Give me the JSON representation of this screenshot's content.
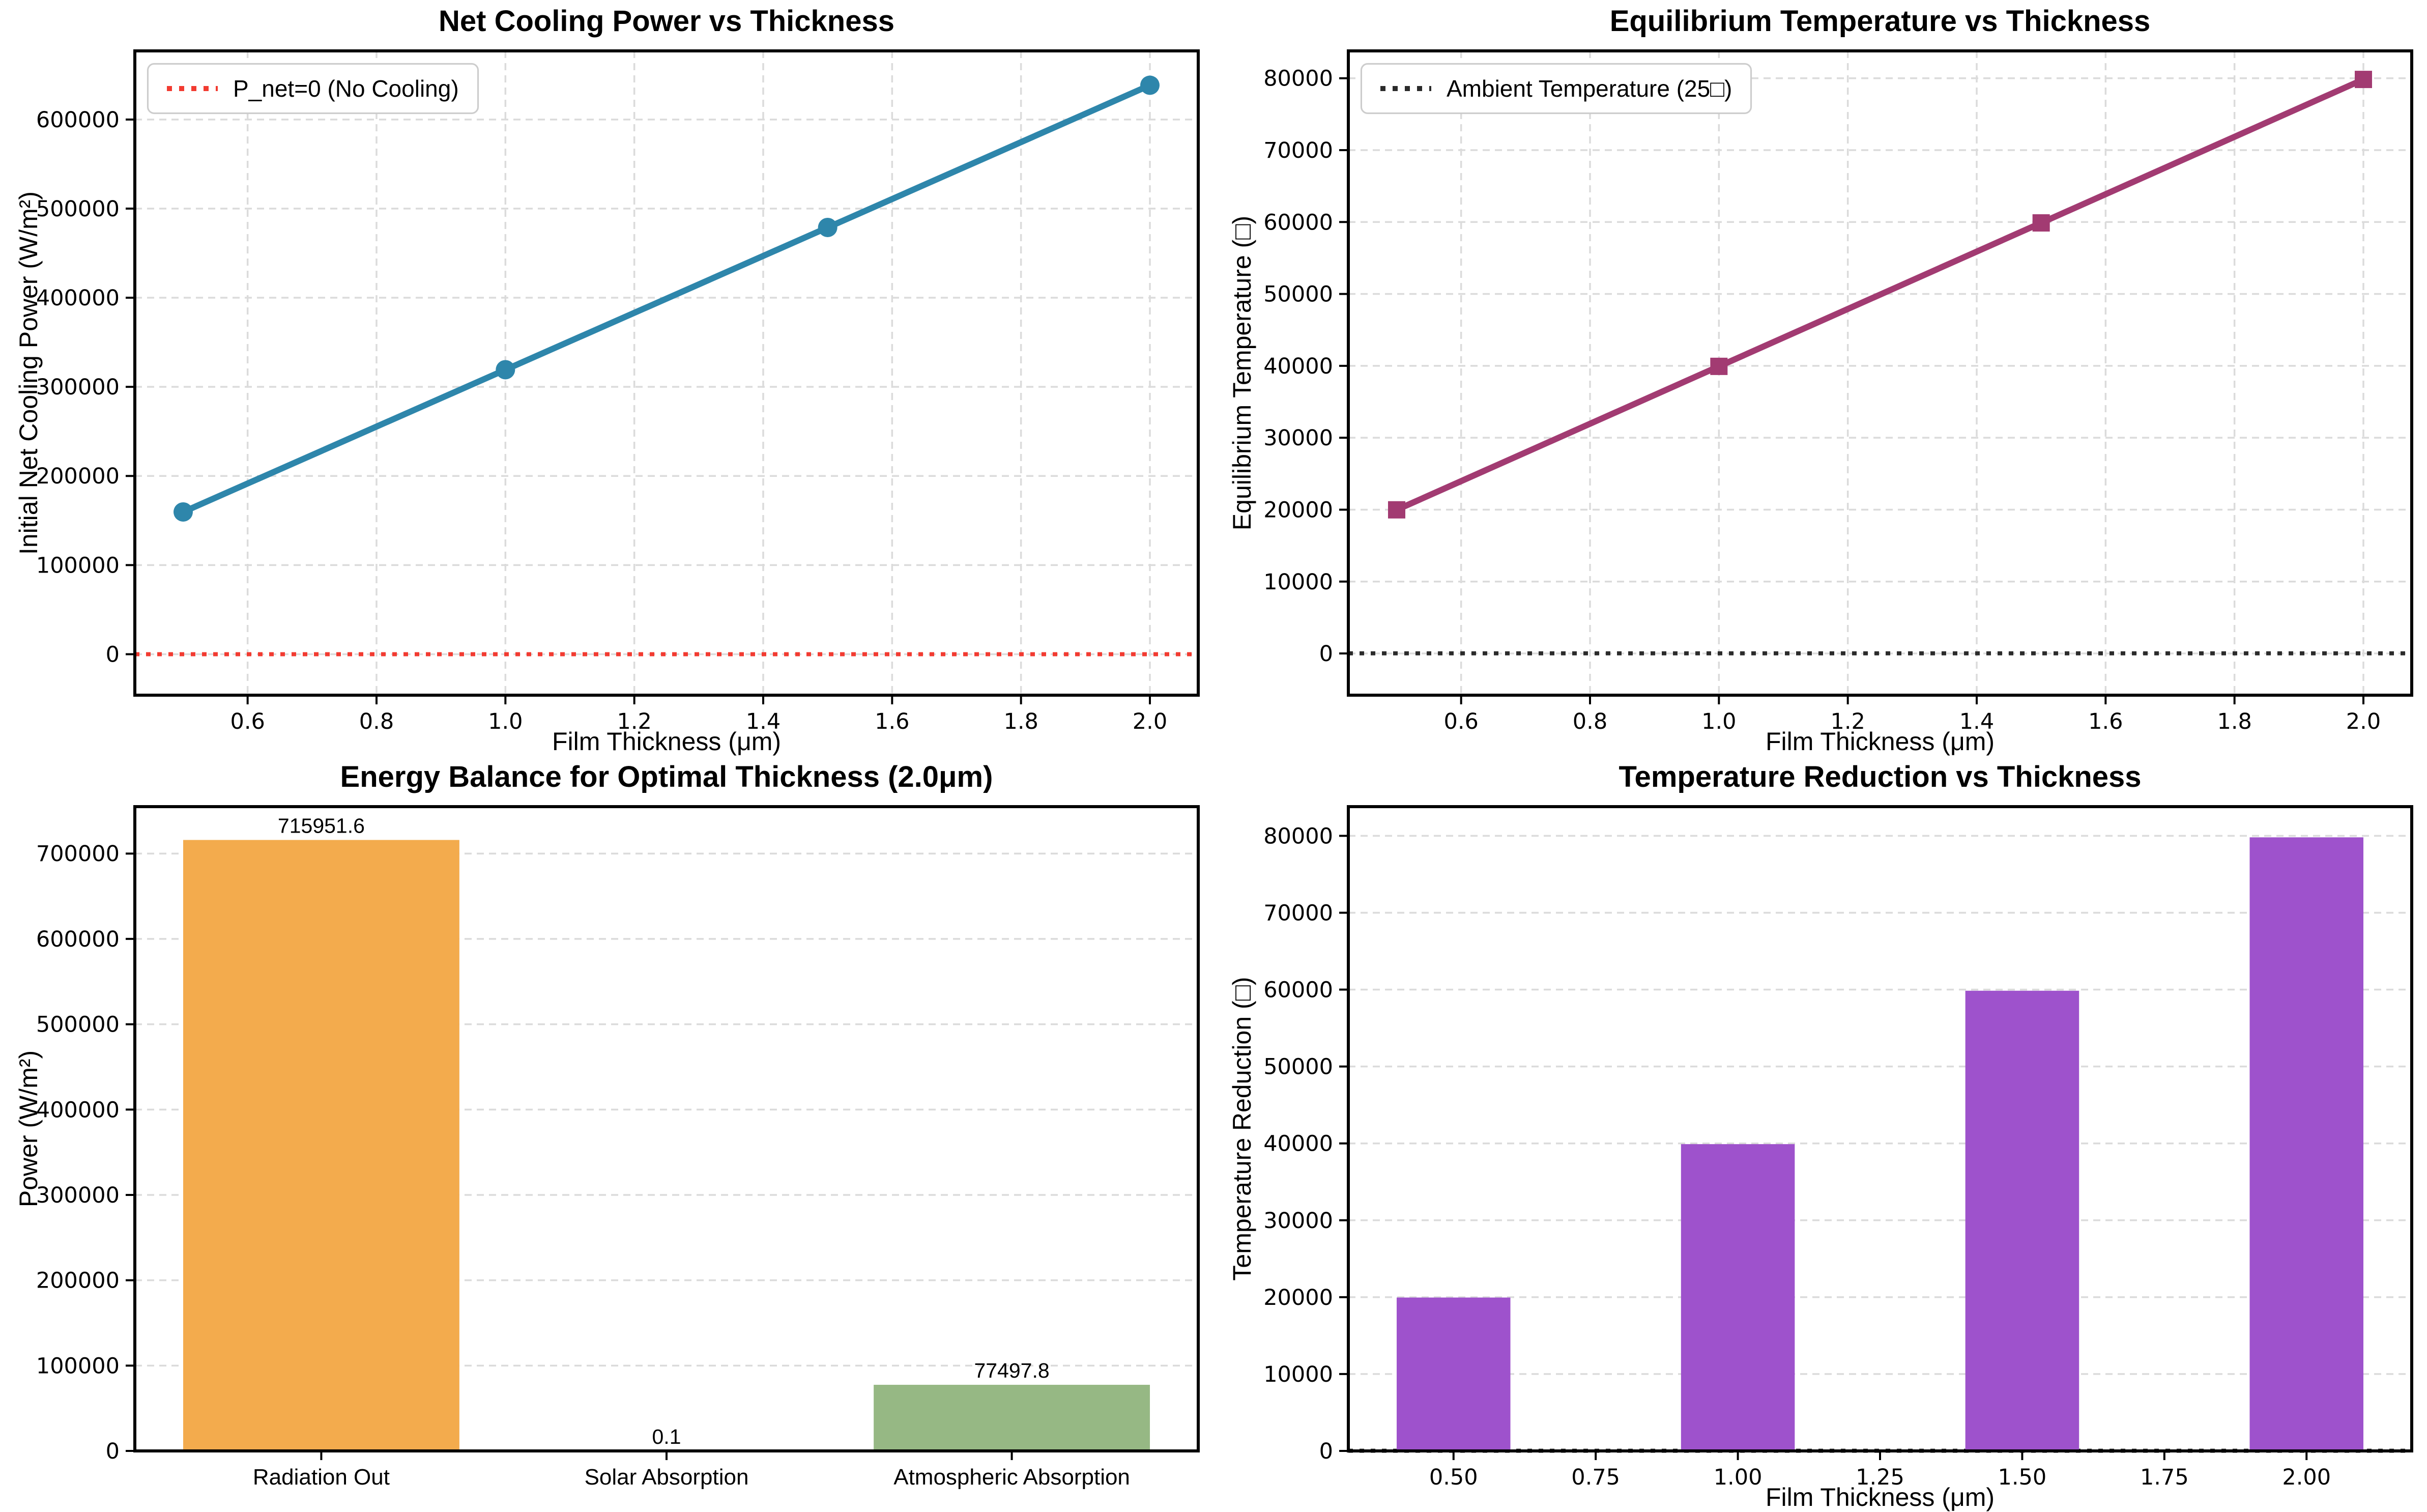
{
  "figure": {
    "background": "#FFFFFF"
  },
  "chart_data": [
    {
      "type": "line",
      "title": "Net Cooling Power vs Thickness",
      "xlabel": "Film Thickness (μm)",
      "ylabel": "Initial Net Cooling Power (W/m²)",
      "x": [
        0.5,
        1.0,
        1.5,
        2.0
      ],
      "y": [
        159613.4,
        319226.9,
        478840.3,
        638453.7
      ],
      "marker": "circle",
      "color": "#2E86AB",
      "line_width": 12,
      "grid": "both",
      "xlim": [
        0.425,
        2.075
      ],
      "ylim": [
        -46000,
        677000
      ],
      "xticks": [
        0.6,
        0.8,
        1.0,
        1.2,
        1.4,
        1.6,
        1.8,
        2.0
      ],
      "xtick_labels": [
        "0.6",
        "0.8",
        "1.0",
        "1.2",
        "1.4",
        "1.6",
        "1.8",
        "2.0"
      ],
      "yticks": [
        0,
        100000,
        200000,
        300000,
        400000,
        500000,
        600000
      ],
      "ytick_labels": [
        "0",
        "100000",
        "200000",
        "300000",
        "400000",
        "500000",
        "600000"
      ],
      "refline": {
        "y": 0,
        "color": "#F23B31",
        "style": "dotted"
      },
      "legend": {
        "label": "P_net=0 (No Cooling)",
        "position": "upper-left"
      }
    },
    {
      "type": "line",
      "title": "Equilibrium Temperature vs Thickness",
      "xlabel": "Film Thickness (μm)",
      "ylabel": "Equilibrium Temperature (□)",
      "x": [
        0.5,
        1.0,
        1.5,
        2.0
      ],
      "y": [
        19976.7,
        39928.4,
        59880.1,
        79831.7
      ],
      "marker": "square",
      "color": "#A23B72",
      "line_width": 12,
      "grid": "both",
      "xlim": [
        0.425,
        2.075
      ],
      "ylim": [
        -5800,
        83800
      ],
      "xticks": [
        0.6,
        0.8,
        1.0,
        1.2,
        1.4,
        1.6,
        1.8,
        2.0
      ],
      "xtick_labels": [
        "0.6",
        "0.8",
        "1.0",
        "1.2",
        "1.4",
        "1.6",
        "1.8",
        "2.0"
      ],
      "yticks": [
        0,
        10000,
        20000,
        30000,
        40000,
        50000,
        60000,
        70000,
        80000
      ],
      "ytick_labels": [
        "0",
        "10000",
        "20000",
        "30000",
        "40000",
        "50000",
        "60000",
        "70000",
        "80000"
      ],
      "refline": {
        "y": 25,
        "color": "#2B2B2B",
        "style": "dotted"
      },
      "legend": {
        "label": "Ambient Temperature (25□)",
        "position": "upper-left"
      }
    },
    {
      "type": "bar",
      "title": "Energy Balance for Optimal Thickness (2.0μm)",
      "xlabel": "",
      "ylabel": "Power (W/m²)",
      "categories": [
        "Radiation Out",
        "Solar Absorption",
        "Atmospheric Absorption"
      ],
      "values": [
        715951.6,
        0.1,
        77497.8
      ],
      "value_labels": [
        "715951.6",
        "0.1",
        "77497.8"
      ],
      "colors": [
        "#F3AB4D",
        "#888888",
        "#96B884"
      ],
      "bar_width": 0.8,
      "grid": "y",
      "xlim": [
        -0.54,
        2.54
      ],
      "ylim": [
        0,
        755000
      ],
      "yticks": [
        0,
        100000,
        200000,
        300000,
        400000,
        500000,
        600000,
        700000
      ],
      "ytick_labels": [
        "0",
        "100000",
        "200000",
        "300000",
        "400000",
        "500000",
        "600000",
        "700000"
      ]
    },
    {
      "type": "bar",
      "title": "Temperature Reduction vs Thickness",
      "xlabel": "Film Thickness (μm)",
      "ylabel": "Temperature Reduction (□)",
      "x": [
        0.5,
        1.0,
        1.5,
        2.0
      ],
      "values": [
        19951.7,
        39903.4,
        59855.1,
        79806.7
      ],
      "color": "#9E52CC",
      "bar_width": 0.2,
      "grid": "y",
      "xlim": [
        0.315,
        2.185
      ],
      "ylim": [
        0,
        83800
      ],
      "xticks": [
        0.5,
        0.75,
        1.0,
        1.25,
        1.5,
        1.75,
        2.0
      ],
      "xtick_labels": [
        "0.50",
        "0.75",
        "1.00",
        "1.25",
        "1.50",
        "1.75",
        "2.00"
      ],
      "yticks": [
        0,
        10000,
        20000,
        30000,
        40000,
        50000,
        60000,
        70000,
        80000
      ],
      "ytick_labels": [
        "0",
        "10000",
        "20000",
        "30000",
        "40000",
        "50000",
        "60000",
        "70000",
        "80000"
      ],
      "refline": {
        "y": 25,
        "color": "#2B2B2B",
        "style": "dotted"
      }
    }
  ]
}
